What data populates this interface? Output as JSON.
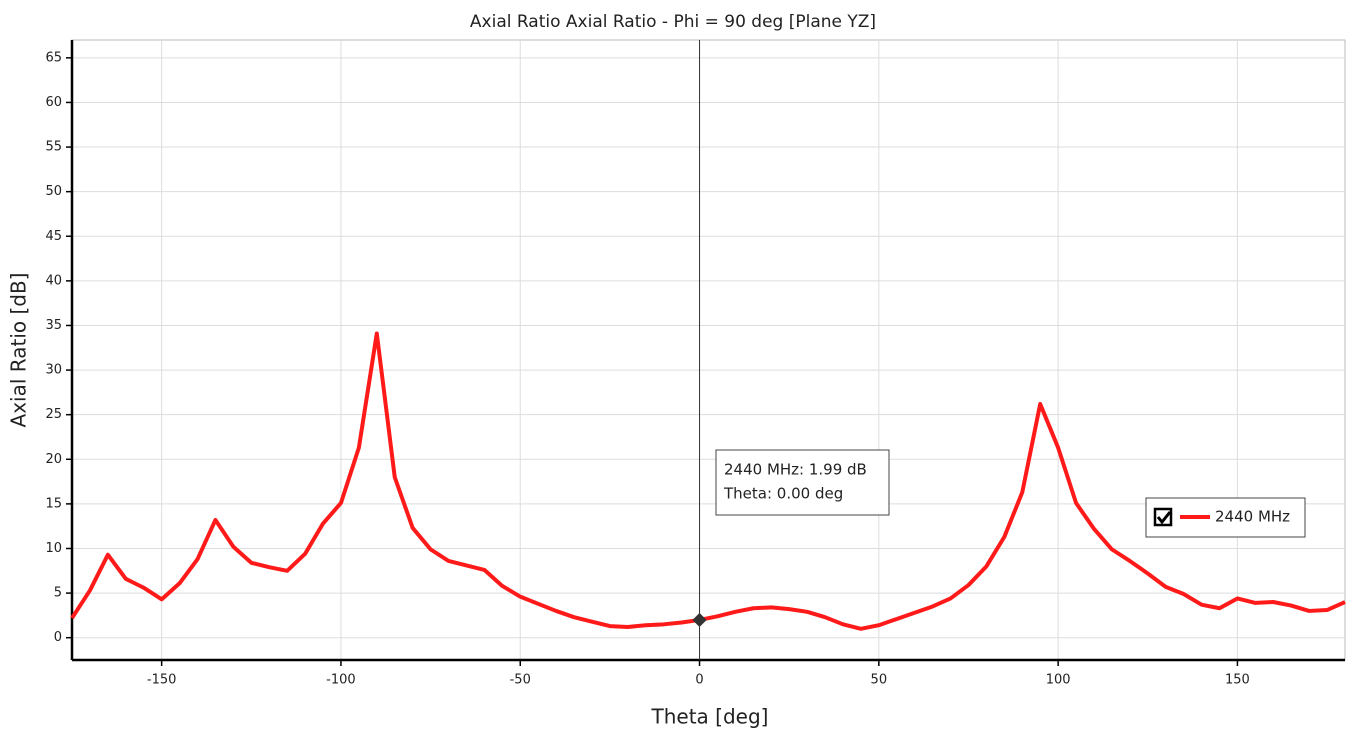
{
  "chart_data": {
    "type": "line",
    "title": "Axial Ratio Axial Ratio - Phi = 90 deg [Plane YZ]",
    "x_label": "Theta [deg]",
    "y_label": "Axial Ratio [dB]",
    "x": [
      -175,
      -170,
      -165,
      -160,
      -155,
      -150,
      -145,
      -140,
      -135,
      -130,
      -125,
      -120,
      -115,
      -110,
      -105,
      -100,
      -95,
      -90,
      -85,
      -80,
      -75,
      -70,
      -65,
      -60,
      -55,
      -50,
      -45,
      -40,
      -35,
      -30,
      -25,
      -20,
      -15,
      -10,
      -5,
      0,
      5,
      10,
      15,
      20,
      25,
      30,
      35,
      40,
      45,
      50,
      55,
      60,
      65,
      70,
      75,
      80,
      85,
      90,
      95,
      100,
      105,
      110,
      115,
      120,
      125,
      130,
      135,
      140,
      145,
      150,
      155,
      160,
      165,
      170,
      175,
      180
    ],
    "series": [
      {
        "name": "2440 MHz",
        "color": "#ff1a1a",
        "values": [
          2.2,
          5.3,
          9.3,
          6.6,
          5.6,
          4.3,
          6.1,
          8.8,
          13.2,
          10.2,
          8.4,
          7.9,
          7.5,
          9.4,
          12.8,
          15.1,
          21.3,
          34.1,
          18.0,
          12.3,
          9.9,
          8.6,
          8.1,
          7.6,
          5.8,
          4.6,
          3.8,
          3.0,
          2.3,
          1.8,
          1.3,
          1.2,
          1.4,
          1.5,
          1.7,
          1.99,
          2.4,
          2.9,
          3.3,
          3.4,
          3.2,
          2.9,
          2.3,
          1.5,
          1.0,
          1.4,
          2.1,
          2.8,
          3.5,
          4.4,
          5.9,
          8.0,
          11.3,
          16.3,
          26.2,
          21.3,
          15.1,
          12.2,
          9.9,
          8.6,
          7.2,
          5.7,
          4.9,
          3.7,
          3.3,
          4.4,
          3.9,
          4.0,
          3.6,
          3.0,
          3.1,
          4.0
        ]
      }
    ],
    "xlim": [
      -175,
      180
    ],
    "ylim": [
      -2.5,
      67
    ],
    "xticks": [
      -150,
      -100,
      -50,
      0,
      50,
      100,
      150
    ],
    "yticks": [
      0,
      5,
      10,
      15,
      20,
      25,
      30,
      35,
      40,
      45,
      50,
      55,
      60,
      65
    ],
    "grid": true,
    "cursor_x": 0,
    "annotations": [
      "2440 MHz: 1.99 dB",
      "Theta: 0.00 deg"
    ]
  }
}
